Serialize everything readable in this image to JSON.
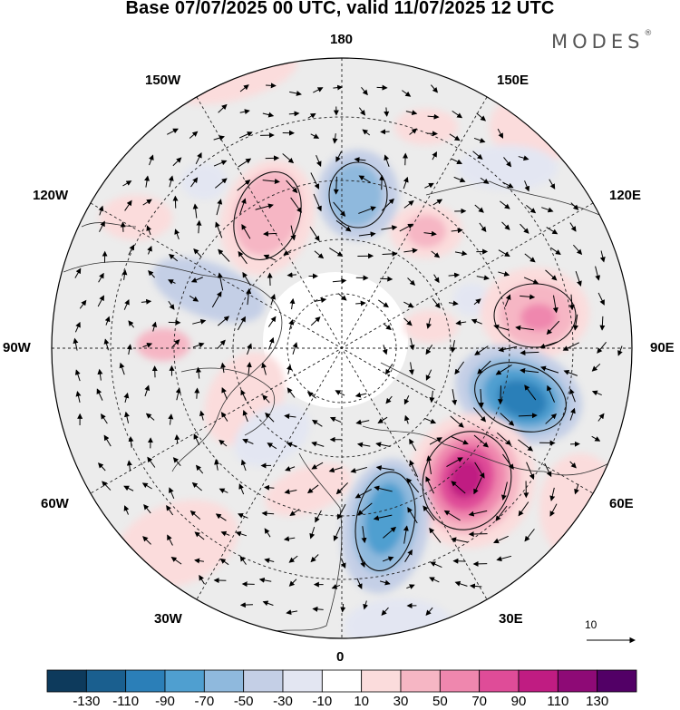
{
  "title": "Base 07/07/2025 00 UTC, valid 11/07/2025 12 UTC",
  "brand": "MODES",
  "brand_mark": "®",
  "longitude_labels": {
    "top": "180",
    "bottom": "0",
    "left": "90W",
    "right": "90E",
    "upper_left": "150W",
    "upper_right": "150E",
    "mid_left": "120W",
    "mid_right": "120E",
    "lower_left": "60W",
    "lower_right": "60E",
    "bottom_left": "30W",
    "bottom_right": "30E"
  },
  "reference_vector_label": "10",
  "colorbar": {
    "ticks": [
      "-130",
      "-110",
      "-90",
      "-70",
      "-50",
      "-30",
      "-10",
      "10",
      "30",
      "50",
      "70",
      "90",
      "110",
      "130"
    ],
    "colors": [
      "#0d3a5c",
      "#1a5f8f",
      "#2b7fb8",
      "#4f9fd0",
      "#8fb9dd",
      "#c4cfe6",
      "#e3e6f2",
      "#ffffff",
      "#fbdcdc",
      "#f6b6c4",
      "#ef87ae",
      "#df4c98",
      "#c01c82",
      "#8e0a76",
      "#520066"
    ]
  },
  "map": {
    "projection": "north-polar-stereographic",
    "field": "anomaly-shading-with-wind-vectors",
    "features": [
      {
        "label": "low-anomaly-east-europe",
        "sign": "negative",
        "peak": -90
      },
      {
        "label": "high-anomaly-ural",
        "sign": "positive",
        "peak": 110
      },
      {
        "label": "low-anomaly-west-siberia",
        "sign": "negative",
        "peak": -110
      },
      {
        "label": "high-anomaly-central-siberia",
        "sign": "positive",
        "peak": 70
      },
      {
        "label": "low-anomaly-east-siberian-sea",
        "sign": "negative",
        "peak": -70
      },
      {
        "label": "high-anomaly-alaska",
        "sign": "positive",
        "peak": 50
      },
      {
        "label": "low-anomaly-canada",
        "sign": "negative",
        "peak": -50
      }
    ]
  }
}
